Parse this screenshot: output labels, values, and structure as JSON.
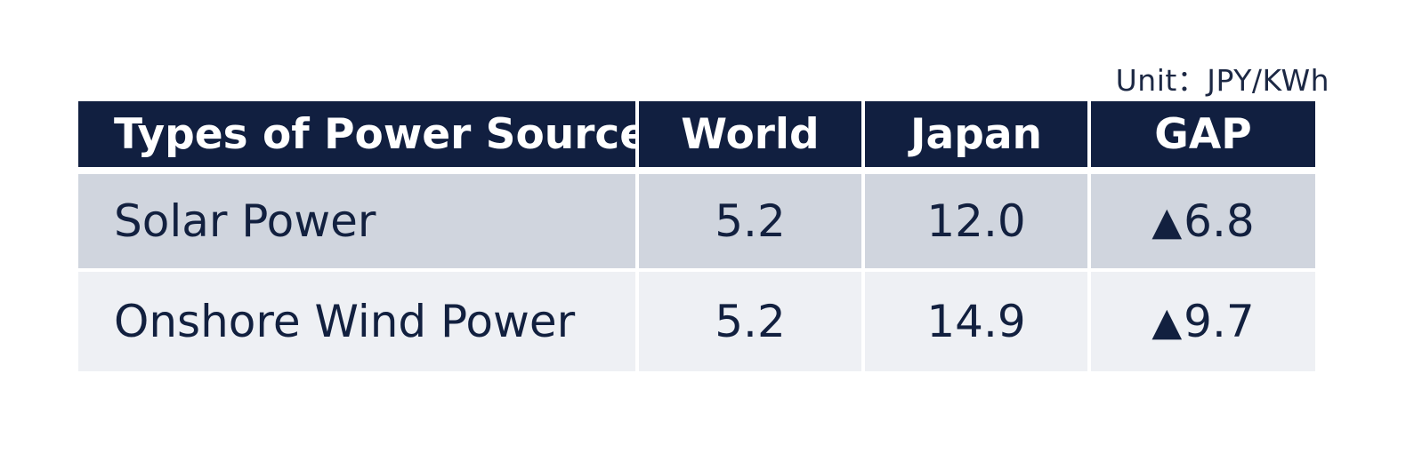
{
  "unit_label": "Unit：JPY/KWh",
  "colors": {
    "header_bg": "#111f40",
    "row_odd_bg": "#d0d5de",
    "row_even_bg": "#eef0f4",
    "text": "#12203f"
  },
  "chart_data": {
    "type": "table",
    "columns": [
      "Types of Power Sources",
      "World",
      "Japan",
      "GAP"
    ],
    "rows": [
      {
        "source": "Solar Power",
        "world": "5.2",
        "japan": "12.0",
        "gap_symbol": "▲",
        "gap": "6.8"
      },
      {
        "source": "Onshore Wind Power",
        "world": "5.2",
        "japan": "14.9",
        "gap_symbol": "▲",
        "gap": "9.7"
      }
    ]
  }
}
